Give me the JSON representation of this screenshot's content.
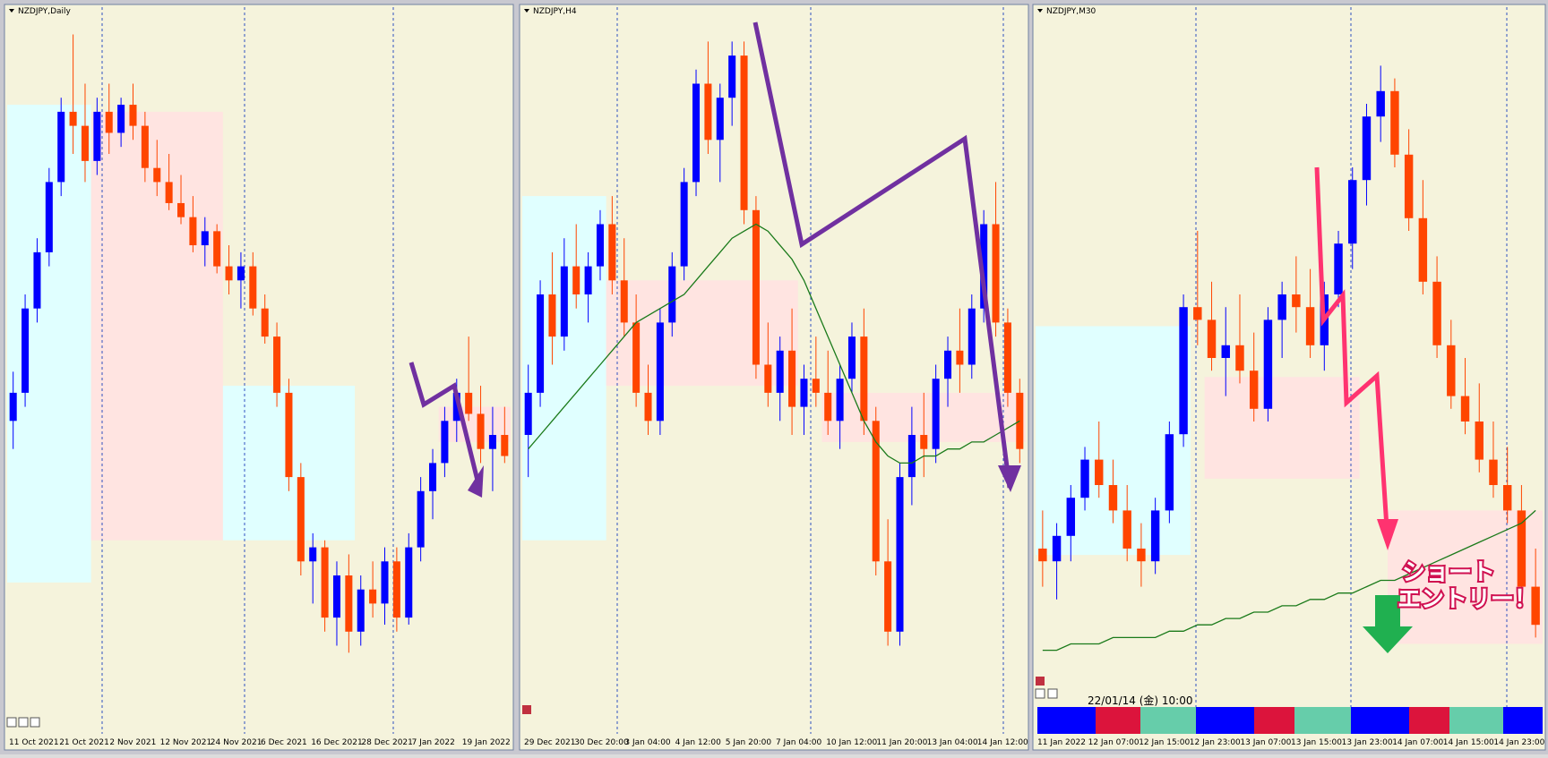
{
  "chart_data": [
    {
      "type": "candlestick",
      "title": "NZDJPY,Daily",
      "ylim": [
        0,
        100
      ],
      "up_color": "#0000ff",
      "down_color": "#ff4500",
      "x_labels": [
        "11 Oct 2021",
        "21 Oct 2021",
        "2 Nov 2021",
        "12 Nov 2021",
        "24 Nov 2021",
        "6 Dec 2021",
        "16 Dec 2021",
        "28 Dec 2021",
        "7 Jan 2022",
        "19 Jan 2022"
      ],
      "open": [
        42,
        46,
        58,
        66,
        76,
        86,
        84,
        79,
        86,
        83,
        87,
        84,
        78,
        76,
        73,
        71,
        67,
        69,
        64,
        62,
        64,
        58,
        54,
        46,
        34,
        22,
        24,
        14,
        20,
        12,
        18,
        16,
        22,
        14,
        24,
        32,
        36,
        42,
        46,
        43,
        38,
        40
      ],
      "high": [
        49,
        60,
        68,
        78,
        88,
        97,
        90,
        88,
        90,
        88,
        90,
        86,
        82,
        80,
        77,
        74,
        71,
        70,
        67,
        66,
        66,
        60,
        56,
        48,
        36,
        26,
        25,
        22,
        23,
        20,
        22,
        24,
        24,
        26,
        34,
        38,
        44,
        48,
        54,
        47,
        44,
        44
      ],
      "low": [
        38,
        44,
        56,
        64,
        74,
        80,
        76,
        77,
        80,
        81,
        82,
        76,
        74,
        72,
        70,
        66,
        64,
        63,
        60,
        58,
        57,
        53,
        44,
        32,
        20,
        16,
        12,
        10,
        9,
        10,
        14,
        13,
        12,
        13,
        22,
        28,
        34,
        39,
        42,
        36,
        32,
        36
      ],
      "close": [
        46,
        58,
        66,
        76,
        86,
        84,
        79,
        86,
        83,
        87,
        84,
        78,
        76,
        73,
        71,
        67,
        69,
        64,
        62,
        64,
        58,
        54,
        46,
        34,
        22,
        24,
        14,
        20,
        12,
        18,
        16,
        22,
        14,
        24,
        32,
        36,
        42,
        46,
        43,
        38,
        40,
        37
      ],
      "zones": [
        {
          "from": 0,
          "to": 6,
          "low": 19,
          "high": 87,
          "color": "#e0ffff"
        },
        {
          "from": 7,
          "to": 17,
          "low": 25,
          "high": 86,
          "color": "#ffe4e1"
        },
        {
          "from": 18,
          "to": 28,
          "low": 25,
          "high": 47,
          "color": "#e0ffff"
        },
        {
          "from": 36,
          "to": 41,
          "low": 39,
          "high": 44,
          "color": "#ffe4e1"
        }
      ]
    },
    {
      "type": "candlestick",
      "title": "NZDJPY,H4",
      "ylim": [
        0,
        100
      ],
      "up_color": "#0000ff",
      "down_color": "#ff4500",
      "ma_color": "#1a7a1a",
      "x_labels": [
        "29 Dec 2021",
        "30 Dec 20:00",
        "3 Jan 04:00",
        "4 Jan 12:00",
        "5 Jan 20:00",
        "7 Jan 04:00",
        "10 Jan 12:00",
        "11 Jan 20:00",
        "13 Jan 04:00",
        "14 Jan 12:00"
      ],
      "open": [
        40,
        46,
        60,
        54,
        64,
        60,
        64,
        70,
        62,
        56,
        46,
        42,
        56,
        64,
        76,
        90,
        82,
        88,
        94,
        72,
        50,
        46,
        52,
        44,
        48,
        46,
        42,
        48,
        54,
        42,
        22,
        12,
        34,
        40,
        38,
        48,
        52,
        50,
        58,
        70,
        56,
        46
      ],
      "high": [
        50,
        62,
        66,
        68,
        70,
        66,
        72,
        74,
        68,
        60,
        50,
        58,
        66,
        78,
        92,
        96,
        90,
        96,
        96,
        74,
        56,
        54,
        58,
        50,
        54,
        52,
        50,
        56,
        58,
        44,
        28,
        36,
        44,
        46,
        50,
        54,
        58,
        60,
        72,
        76,
        58,
        48
      ],
      "low": [
        34,
        44,
        50,
        52,
        58,
        56,
        62,
        60,
        54,
        44,
        40,
        40,
        54,
        62,
        74,
        80,
        76,
        84,
        70,
        48,
        44,
        42,
        40,
        40,
        44,
        40,
        38,
        46,
        40,
        20,
        10,
        10,
        30,
        34,
        36,
        44,
        46,
        48,
        56,
        54,
        44,
        36
      ],
      "close": [
        46,
        60,
        54,
        64,
        60,
        64,
        70,
        62,
        56,
        46,
        42,
        56,
        64,
        76,
        90,
        82,
        88,
        94,
        72,
        50,
        46,
        52,
        44,
        48,
        46,
        42,
        48,
        54,
        42,
        22,
        12,
        34,
        40,
        38,
        48,
        52,
        50,
        58,
        70,
        56,
        46,
        38
      ],
      "ma": [
        38,
        40,
        42,
        44,
        46,
        48,
        50,
        52,
        54,
        56,
        57,
        58,
        59,
        60,
        62,
        64,
        66,
        68,
        69,
        70,
        69,
        67,
        65,
        62,
        58,
        54,
        50,
        46,
        42,
        39,
        37,
        36,
        36,
        37,
        37,
        38,
        38,
        39,
        39,
        40,
        41,
        42
      ],
      "zones": [
        {
          "from": 0,
          "to": 6,
          "low": 25,
          "high": 74,
          "color": "#e0ffff"
        },
        {
          "from": 7,
          "to": 22,
          "low": 47,
          "high": 62,
          "color": "#ffe4e1"
        },
        {
          "from": 25,
          "to": 41,
          "low": 39,
          "high": 46,
          "color": "#ffe4e1"
        }
      ]
    },
    {
      "type": "candlestick",
      "title": "NZDJPY,M30",
      "ylim": [
        0,
        100
      ],
      "up_color": "#0000ff",
      "down_color": "#ff4500",
      "ma_color": "#1a7a1a",
      "x_labels": [
        "11 Jan 2022",
        "12 Jan 07:00",
        "12 Jan 15:00",
        "12 Jan 23:00",
        "13 Jan 07:00",
        "13 Jan 15:00",
        "13 Jan 23:00",
        "14 Jan 07:00",
        "14 Jan 15:00",
        "14 Jan 23:00"
      ],
      "open": [
        20,
        18,
        22,
        28,
        34,
        30,
        26,
        20,
        18,
        26,
        38,
        58,
        56,
        50,
        52,
        48,
        42,
        56,
        60,
        58,
        52,
        60,
        68,
        78,
        88,
        92,
        82,
        72,
        62,
        52,
        44,
        40,
        34,
        30,
        26,
        14
      ],
      "high": [
        26,
        24,
        30,
        36,
        40,
        34,
        30,
        24,
        28,
        40,
        60,
        70,
        62,
        58,
        60,
        54,
        58,
        62,
        66,
        64,
        62,
        70,
        80,
        90,
        96,
        94,
        86,
        78,
        66,
        56,
        50,
        46,
        40,
        36,
        30,
        20
      ],
      "low": [
        14,
        12,
        18,
        26,
        28,
        24,
        18,
        14,
        16,
        24,
        36,
        52,
        48,
        44,
        46,
        40,
        40,
        50,
        54,
        50,
        48,
        58,
        64,
        74,
        84,
        80,
        70,
        60,
        50,
        42,
        38,
        32,
        28,
        24,
        12,
        6
      ],
      "close": [
        18,
        22,
        28,
        34,
        30,
        26,
        20,
        18,
        26,
        38,
        58,
        56,
        50,
        52,
        48,
        42,
        56,
        60,
        58,
        52,
        60,
        68,
        78,
        88,
        92,
        82,
        72,
        62,
        52,
        44,
        40,
        34,
        30,
        26,
        14,
        8
      ],
      "ma": [
        4,
        4,
        5,
        5,
        5,
        6,
        6,
        6,
        6,
        7,
        7,
        8,
        8,
        9,
        9,
        10,
        10,
        11,
        11,
        12,
        12,
        13,
        13,
        14,
        15,
        15,
        16,
        17,
        18,
        19,
        20,
        21,
        22,
        23,
        24,
        26
      ],
      "zones": [
        {
          "from": 0,
          "to": 10,
          "low": 19,
          "high": 55,
          "color": "#e0ffff"
        },
        {
          "from": 12,
          "to": 22,
          "low": 31,
          "high": 47,
          "color": "#ffe4e1"
        },
        {
          "from": 25,
          "to": 35,
          "low": 5,
          "high": 26,
          "color": "#ffe4e1"
        }
      ],
      "timestamp": "22/01/14 (金) 10:00",
      "annotation": [
        "ショート",
        "エントリー！"
      ]
    }
  ]
}
